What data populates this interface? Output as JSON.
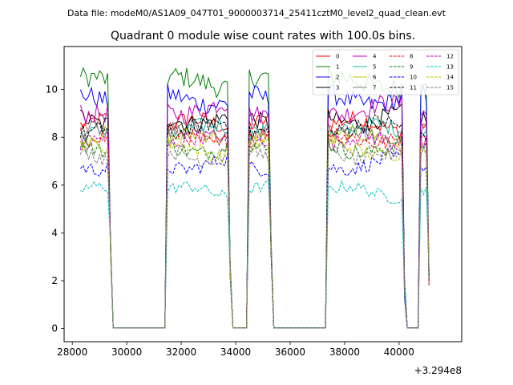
{
  "chart_data": {
    "type": "line",
    "suptitle": "Data file: modeM0/AS1A09_047T01_9000003714_25411cztM0_level2_quad_clean.evt",
    "title": "Quadrant 0 module wise count rates with 100.0s bins.",
    "xlabel": "",
    "ylabel": "",
    "x_offset_label": "+3.294e8",
    "xlim": [
      27700,
      42300
    ],
    "ylim": [
      -0.55,
      11.8
    ],
    "xticks": [
      28000,
      30000,
      32000,
      34000,
      36000,
      38000,
      40000
    ],
    "xtick_labels": [
      "28000",
      "30000",
      "32000",
      "34000",
      "36000",
      "38000",
      "40000"
    ],
    "yticks": [
      0,
      2,
      4,
      6,
      8,
      10
    ],
    "ytick_labels": [
      "0",
      "2",
      "4",
      "6",
      "8",
      "10"
    ],
    "legend_position": "top-right",
    "bin_seconds": 100,
    "on_segments": [
      {
        "start": 28300,
        "end": 29400,
        "drop_to": 3.5
      },
      {
        "start": 31500,
        "end": 33800,
        "drop_to": 2.5
      },
      {
        "start": 34500,
        "end": 35300,
        "drop_to": 3.5
      },
      {
        "start": 37400,
        "end": 40200,
        "drop_to": 1.6
      },
      {
        "start": 40800,
        "end": 41100,
        "drop_to": 2.2
      }
    ],
    "off_level": 0.03,
    "series": [
      {
        "name": "0",
        "color": "#ff0000",
        "dash": "solid",
        "level": 8.5
      },
      {
        "name": "1",
        "color": "#008000",
        "dash": "solid",
        "level": 10.3
      },
      {
        "name": "2",
        "color": "#0000ff",
        "dash": "solid",
        "level": 9.6
      },
      {
        "name": "3",
        "color": "#000000",
        "dash": "solid",
        "level": 8.8
      },
      {
        "name": "4",
        "color": "#bf00bf",
        "dash": "solid",
        "level": 9.2
      },
      {
        "name": "5",
        "color": "#20b2aa",
        "dash": "solid",
        "level": 8.3
      },
      {
        "name": "6",
        "color": "#bfbf00",
        "dash": "solid",
        "level": 7.9
      },
      {
        "name": "7",
        "color": "#808080",
        "dash": "solid",
        "level": 8.1
      },
      {
        "name": "8",
        "color": "#ff0000",
        "dash": "dashed",
        "level": 8.0
      },
      {
        "name": "9",
        "color": "#008000",
        "dash": "dashed",
        "level": 7.6
      },
      {
        "name": "10",
        "color": "#0000ff",
        "dash": "dashed",
        "level": 6.9
      },
      {
        "name": "11",
        "color": "#000000",
        "dash": "dashed",
        "level": 8.4
      },
      {
        "name": "12",
        "color": "#bf00bf",
        "dash": "dashed",
        "level": 7.8
      },
      {
        "name": "13",
        "color": "#00bfbf",
        "dash": "dashed",
        "level": 5.7
      },
      {
        "name": "14",
        "color": "#bfbf00",
        "dash": "dashed",
        "level": 7.5
      },
      {
        "name": "15",
        "color": "#808080",
        "dash": "dashed",
        "level": 7.3
      }
    ]
  }
}
